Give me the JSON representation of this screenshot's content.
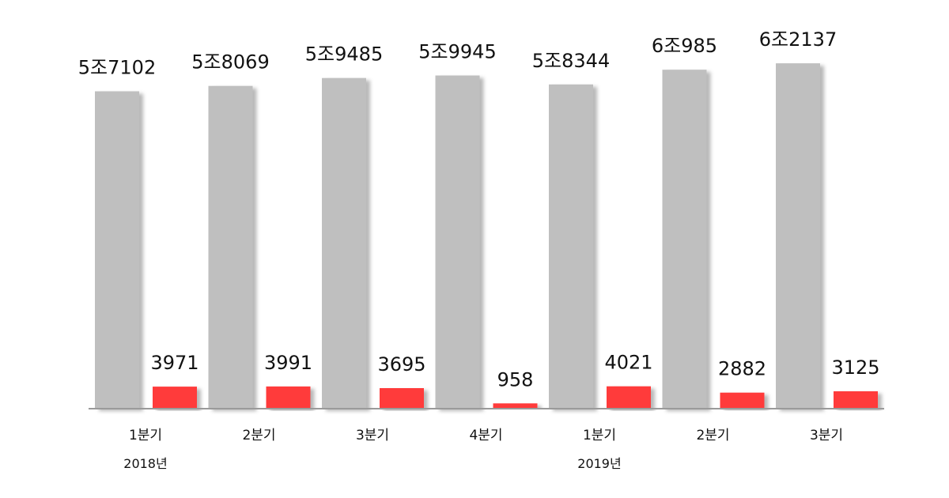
{
  "chart_data": {
    "type": "bar",
    "categories": [
      "1분기",
      "2분기",
      "3분기",
      "4분기",
      "1분기",
      "2분기",
      "3분기"
    ],
    "groups": [
      {
        "label": "2018년",
        "start": 0,
        "end": 3
      },
      {
        "label": "2019년",
        "start": 4,
        "end": 6
      }
    ],
    "series": [
      {
        "values": [
          57102,
          58069,
          59485,
          59945,
          58344,
          60985,
          62137
        ],
        "labels": [
          "5조7102",
          "5조8069",
          "5조9485",
          "5조9945",
          "5조8344",
          "6조985",
          "6조2137"
        ],
        "color": "#bfbfbf"
      },
      {
        "values": [
          3971,
          3991,
          3695,
          958,
          4021,
          2882,
          3125
        ],
        "labels": [
          "3971",
          "3991",
          "3695",
          "958",
          "4021",
          "2882",
          "3125"
        ],
        "color": "#ff3b3b"
      }
    ],
    "ylim": [
      0,
      64000
    ],
    "grid": false,
    "legend": "none"
  }
}
